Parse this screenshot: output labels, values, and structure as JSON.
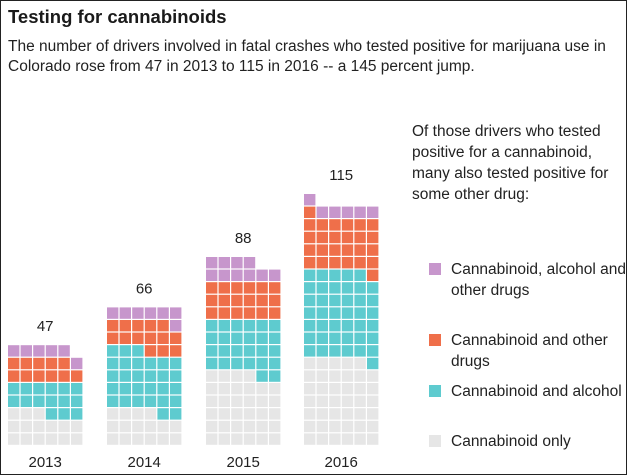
{
  "title": "Testing for cannabinoids",
  "subtitle": "The number of drivers involved in fatal crashes who tested positive for marijuana use in Colorado rose from 47 in 2013 to 115 in 2016 -- a 145 percent jump.",
  "legend_intro": "Of those drivers who tested positive for a cannabinoid, many also tested positive for some other drug:",
  "chart_data": {
    "type": "waffle",
    "unit": "drivers (one square = one driver)",
    "categories": [
      "2013",
      "2014",
      "2015",
      "2016"
    ],
    "totals": [
      47,
      66,
      88,
      115
    ],
    "series": [
      {
        "name": "Cannabinoid only",
        "color": "#e6e6e6",
        "values": [
          15,
          16,
          34,
          41
        ]
      },
      {
        "name": "Cannabinoid and alcohol",
        "color": "#5ecbcf",
        "values": [
          15,
          29,
          26,
          42
        ]
      },
      {
        "name": "Cannabinoid and other drugs",
        "color": "#ef6f4a",
        "values": [
          11,
          14,
          18,
          26
        ]
      },
      {
        "name": "Cannabinoid, alcohol and other drugs",
        "color": "#c796cc",
        "values": [
          6,
          7,
          10,
          6
        ]
      }
    ],
    "legend": [
      {
        "label": "Cannabinoid, alcohol and other drugs",
        "color": "#c796cc"
      },
      {
        "label": "Cannabinoid and other drugs",
        "color": "#ef6f4a"
      },
      {
        "label": "Cannabinoid and alcohol",
        "color": "#5ecbcf"
      },
      {
        "label": "Cannabinoid only",
        "color": "#e6e6e6"
      }
    ]
  }
}
